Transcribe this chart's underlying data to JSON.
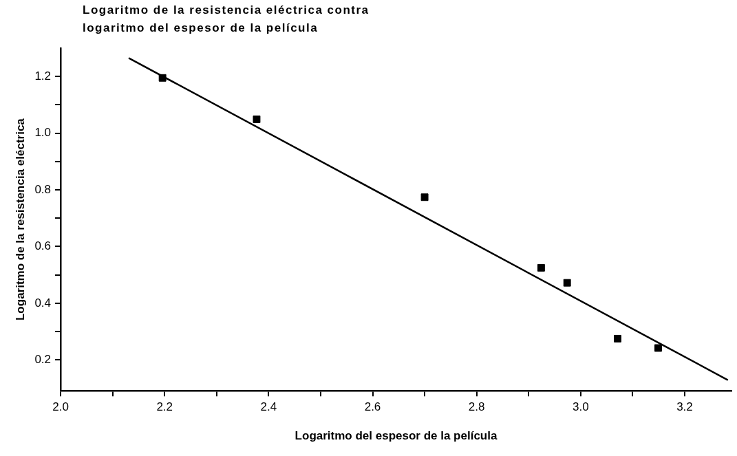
{
  "chart_data": {
    "type": "scatter",
    "title": "Logaritmo de la resistencia eléctrica contra logaritmo del espesor de la película",
    "xlabel": "Logaritmo del espesor de la película",
    "ylabel": "Logaritmo de la resistencia eléctrica",
    "series": [
      {
        "color": "#000000",
        "marker": "square",
        "x": [
          2.196,
          2.377,
          2.7,
          2.924,
          2.974,
          3.071,
          3.149
        ],
        "values": [
          1.195,
          1.049,
          0.774,
          0.525,
          0.472,
          0.275,
          0.242
        ]
      },
      {
        "type": "line",
        "color": "#000000",
        "marker": "none",
        "line_style": "solid",
        "x": [
          2.131,
          3.283
        ],
        "values": [
          1.265,
          0.129
        ]
      }
    ],
    "xlim": [
      2.0,
      3.29
    ],
    "ylim": [
      0.091,
      1.3
    ],
    "xticks": [
      {
        "value": 2.0,
        "label": "2.0"
      },
      {
        "value": 2.1,
        "label": null
      },
      {
        "value": 2.2,
        "label": "2.2"
      },
      {
        "value": 2.3,
        "label": null
      },
      {
        "value": 2.4,
        "label": "2.4"
      },
      {
        "value": 2.5,
        "label": null
      },
      {
        "value": 2.6,
        "label": "2.6"
      },
      {
        "value": 2.7,
        "label": null
      },
      {
        "value": 2.8,
        "label": "2.8"
      },
      {
        "value": 2.9,
        "label": null
      },
      {
        "value": 3.0,
        "label": "3.0"
      },
      {
        "value": 3.1,
        "label": null
      },
      {
        "value": 3.2,
        "label": "3.2"
      }
    ],
    "yticks": [
      {
        "value": 0.2,
        "label": "0.2"
      },
      {
        "value": 0.3,
        "label": null
      },
      {
        "value": 0.4,
        "label": "0.4"
      },
      {
        "value": 0.5,
        "label": null
      },
      {
        "value": 0.6,
        "label": "0.6"
      },
      {
        "value": 0.7,
        "label": null
      },
      {
        "value": 0.8,
        "label": "0.8"
      },
      {
        "value": 0.9,
        "label": null
      },
      {
        "value": 1.0,
        "label": "1.0"
      },
      {
        "value": 1.1,
        "label": null
      },
      {
        "value": 1.2,
        "label": "1.2"
      }
    ],
    "grid": false,
    "legend": false
  }
}
